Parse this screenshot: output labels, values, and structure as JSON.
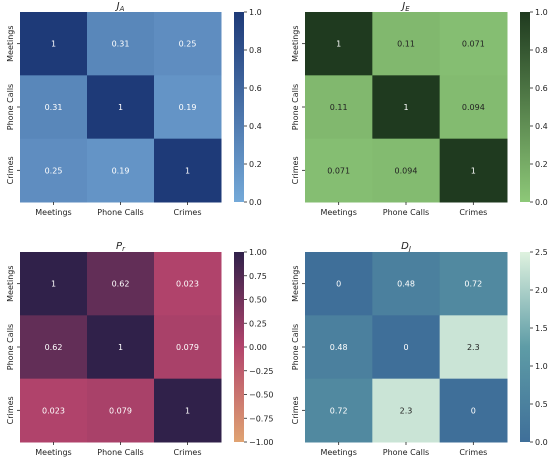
{
  "chart_data": [
    {
      "type": "heatmap",
      "title": "J_A",
      "title_main": "J",
      "title_sub": "A",
      "rows": [
        "Meetings",
        "Phone Calls",
        "Crimes"
      ],
      "cols": [
        "Meetings",
        "Phone Calls",
        "Crimes"
      ],
      "values": [
        [
          1,
          0.31,
          0.25
        ],
        [
          0.31,
          1,
          0.19
        ],
        [
          0.25,
          0.19,
          1
        ]
      ],
      "labels": [
        [
          "1",
          "0.31",
          "0.25"
        ],
        [
          "0.31",
          "1",
          "0.19"
        ],
        [
          "0.25",
          "0.19",
          "1"
        ]
      ],
      "colorbar": {
        "min": 0.0,
        "max": 1.0,
        "ticks": [
          "0.0",
          "0.2",
          "0.4",
          "0.6",
          "0.8",
          "1.0"
        ],
        "tick_values": [
          0,
          0.2,
          0.4,
          0.6,
          0.8,
          1.0
        ]
      },
      "colors": [
        "#74a9d8",
        "#1e3a78"
      ]
    },
    {
      "type": "heatmap",
      "title": "J_E",
      "title_main": "J",
      "title_sub": "E",
      "rows": [
        "Meetings",
        "Phone Calls",
        "Crimes"
      ],
      "cols": [
        "Meetings",
        "Phone Calls",
        "Crimes"
      ],
      "values": [
        [
          1,
          0.11,
          0.071
        ],
        [
          0.11,
          1,
          0.094
        ],
        [
          0.071,
          0.094,
          1
        ]
      ],
      "labels": [
        [
          "1",
          "0.11",
          "0.071"
        ],
        [
          "0.11",
          "1",
          "0.094"
        ],
        [
          "0.071",
          "0.094",
          "1"
        ]
      ],
      "colorbar": {
        "min": 0.0,
        "max": 1.0,
        "ticks": [
          "0.0",
          "0.2",
          "0.4",
          "0.6",
          "0.8",
          "1.0"
        ],
        "tick_values": [
          0,
          0.2,
          0.4,
          0.6,
          0.8,
          1.0
        ]
      },
      "colors": [
        "#8dc878",
        "#1f3a1f"
      ]
    },
    {
      "type": "heatmap",
      "title": "P_r",
      "title_main": "P",
      "title_sub": "r",
      "rows": [
        "Meetings",
        "Phone Calls",
        "Crimes"
      ],
      "cols": [
        "Meetings",
        "Phone Calls",
        "Crimes"
      ],
      "values": [
        [
          1,
          0.62,
          0.023
        ],
        [
          0.62,
          1,
          0.079
        ],
        [
          0.023,
          0.079,
          1
        ]
      ],
      "labels": [
        [
          "1",
          "0.62",
          "0.023"
        ],
        [
          "0.62",
          "1",
          "0.079"
        ],
        [
          "0.023",
          "0.079",
          "1"
        ]
      ],
      "colorbar": {
        "min": -1.0,
        "max": 1.0,
        "ticks": [
          "−1.00",
          "−0.75",
          "−0.50",
          "−0.25",
          "0.00",
          "0.25",
          "0.50",
          "0.75",
          "1.00"
        ],
        "tick_values": [
          -1,
          -0.75,
          -0.5,
          -0.25,
          0,
          0.25,
          0.5,
          0.75,
          1
        ]
      },
      "colors": [
        "#e0a372",
        "#b3446c",
        "#30214a"
      ]
    },
    {
      "type": "heatmap",
      "title": "D_J",
      "title_main": "D",
      "title_sub": "J",
      "rows": [
        "Meetings",
        "Phone Calls",
        "Crimes"
      ],
      "cols": [
        "Meetings",
        "Phone Calls",
        "Crimes"
      ],
      "values": [
        [
          0,
          0.48,
          0.72
        ],
        [
          0.48,
          0,
          2.3
        ],
        [
          0.72,
          2.3,
          0
        ]
      ],
      "labels": [
        [
          "0",
          "0.48",
          "0.72"
        ],
        [
          "0.48",
          "0",
          "2.3"
        ],
        [
          "0.72",
          "2.3",
          "0"
        ]
      ],
      "colorbar": {
        "min": 0.0,
        "max": 2.5,
        "ticks": [
          "0.0",
          "0.5",
          "1.0",
          "1.5",
          "2.0",
          "2.5"
        ],
        "tick_values": [
          0,
          0.5,
          1.0,
          1.5,
          2.0,
          2.5
        ]
      },
      "colors": [
        "#3f6f99",
        "#5e9ca6",
        "#dff2df"
      ]
    }
  ]
}
